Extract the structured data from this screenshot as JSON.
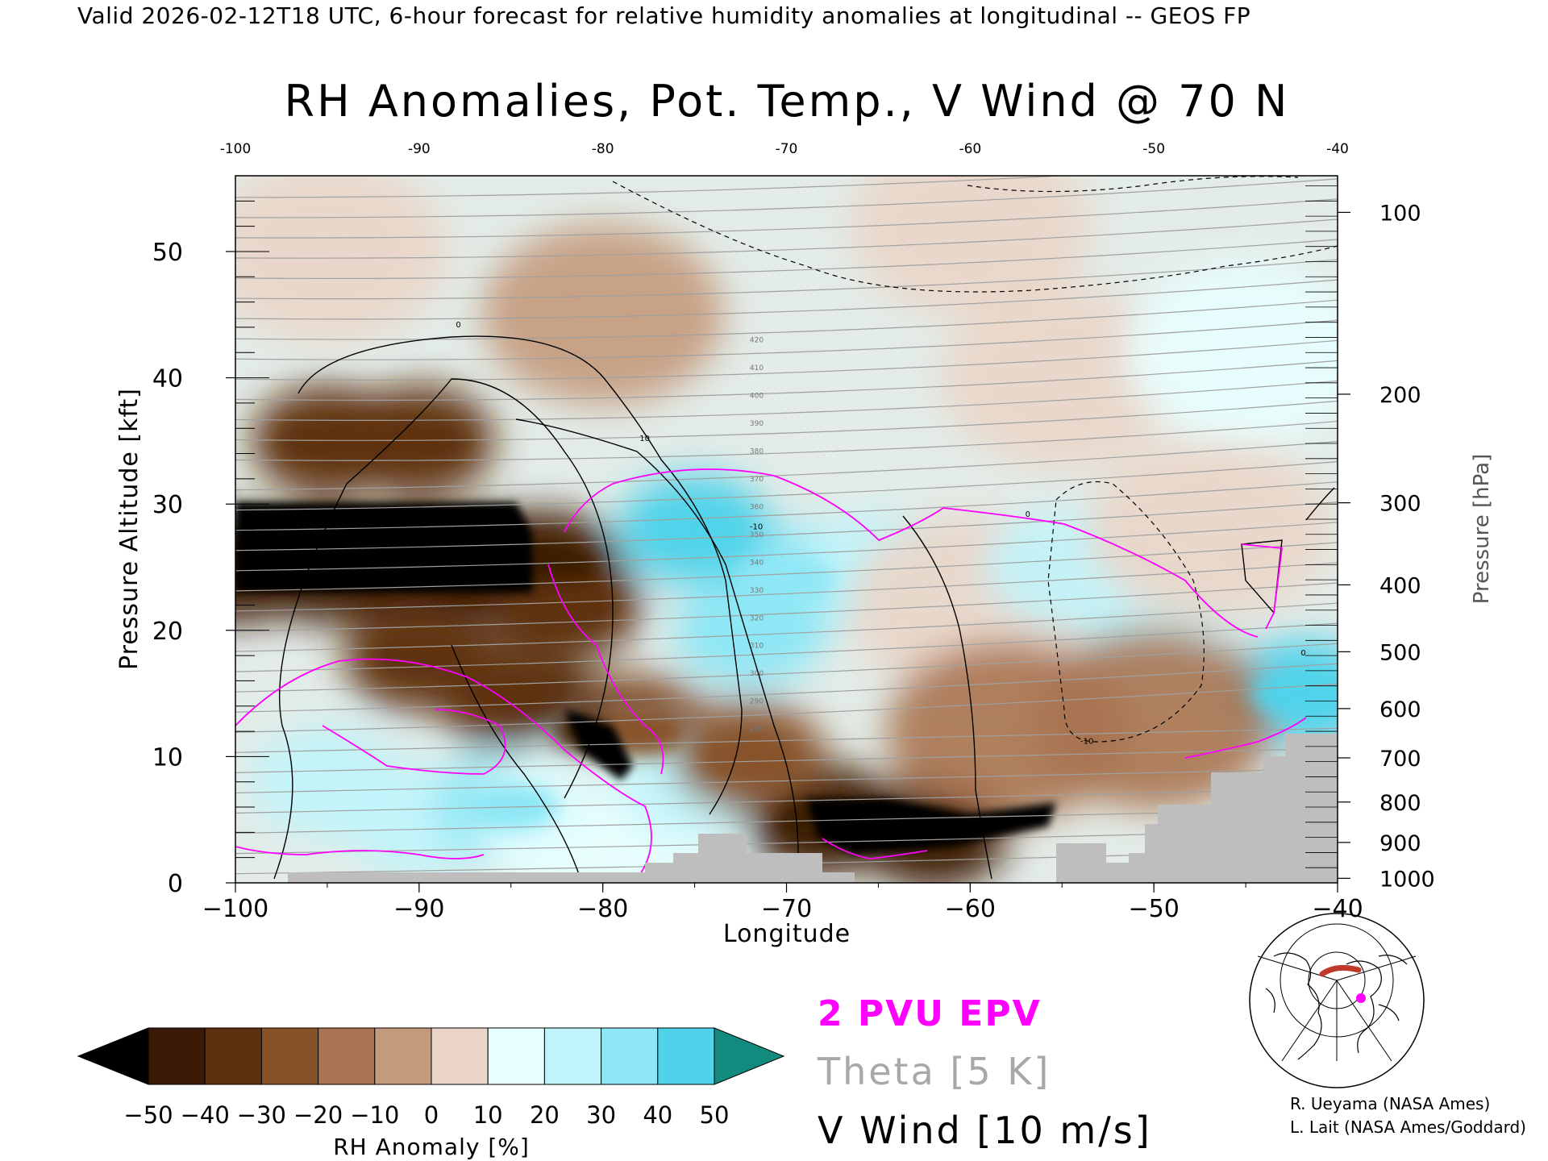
{
  "header": {
    "valid_line": "Valid 2026-02-12T18 UTC, 6-hour forecast for relative humidity anomalies at longitudinal -- GEOS FP"
  },
  "chart_data": {
    "type": "heatmap",
    "title": "RH Anomalies, Pot. Temp., V Wind @ 70 N",
    "xlabel": "Longitude",
    "ylabel": "Pressure Altitude [kft]",
    "y2label": "Pressure [hPa]",
    "xlim": [
      -100,
      -40
    ],
    "ylim": [
      0,
      56
    ],
    "x_ticks": [
      "-100",
      "-90",
      "-80",
      "-70",
      "-60",
      "-50",
      "-40"
    ],
    "x_ticks_bottom": [
      "−100",
      "−90",
      "−80",
      "−70",
      "−60",
      "−50",
      "−40"
    ],
    "y_ticks": [
      "0",
      "10",
      "20",
      "30",
      "40",
      "50"
    ],
    "pressure_levels": [
      "1000",
      "900",
      "800",
      "700",
      "600",
      "500",
      "400",
      "300",
      "200",
      "100"
    ],
    "rh_anomaly_field": [
      {
        "lon": -100,
        "kft": 25,
        "value": -50
      },
      {
        "lon": -95,
        "kft": 25,
        "value": -50
      },
      {
        "lon": -90,
        "kft": 25,
        "value": -50
      },
      {
        "lon": -86,
        "kft": 25,
        "value": -50
      },
      {
        "lon": -83,
        "kft": 25,
        "value": -50
      },
      {
        "lon": -90,
        "kft": 35,
        "value": -35
      },
      {
        "lon": -95,
        "kft": 35,
        "value": -40
      },
      {
        "lon": -90,
        "kft": 18,
        "value": -35
      },
      {
        "lon": -85,
        "kft": 15,
        "value": -38
      },
      {
        "lon": -80,
        "kft": 12,
        "value": -50
      },
      {
        "lon": -78,
        "kft": 12,
        "value": -30
      },
      {
        "lon": -82,
        "kft": 22,
        "value": -35
      },
      {
        "lon": -95,
        "kft": 8,
        "value": 25
      },
      {
        "lon": -90,
        "kft": 5,
        "value": 20
      },
      {
        "lon": -85,
        "kft": 6,
        "value": 35
      },
      {
        "lon": -80,
        "kft": 5,
        "value": 15
      },
      {
        "lon": -75,
        "kft": 8,
        "value": 20
      },
      {
        "lon": -70,
        "kft": 24,
        "value": 30
      },
      {
        "lon": -72,
        "kft": 20,
        "value": 35
      },
      {
        "lon": -75,
        "kft": 28,
        "value": 40
      },
      {
        "lon": -65,
        "kft": 25,
        "value": 25
      },
      {
        "lon": -60,
        "kft": 22,
        "value": 5
      },
      {
        "lon": -55,
        "kft": 25,
        "value": 25
      },
      {
        "lon": -50,
        "kft": 20,
        "value": 25
      },
      {
        "lon": -47,
        "kft": 28,
        "value": 5
      },
      {
        "lon": -42,
        "kft": 15,
        "value": 40
      },
      {
        "lon": -68,
        "kft": 5,
        "value": -50
      },
      {
        "lon": -62,
        "kft": 4,
        "value": -50
      },
      {
        "lon": -72,
        "kft": 10,
        "value": -30
      },
      {
        "lon": -58,
        "kft": 12,
        "value": -15
      },
      {
        "lon": -50,
        "kft": 13,
        "value": -12
      },
      {
        "lon": -55,
        "kft": 40,
        "value": 8
      },
      {
        "lon": -45,
        "kft": 42,
        "value": 15
      },
      {
        "lon": -80,
        "kft": 45,
        "value": -5
      },
      {
        "lon": -95,
        "kft": 50,
        "value": 0
      },
      {
        "lon": -60,
        "kft": 52,
        "value": 0
      }
    ],
    "colorbar": {
      "label": "RH Anomaly [%]",
      "tick_labels": [
        "−50",
        "−40",
        "−30",
        "−20",
        "−10",
        "0",
        "10",
        "20",
        "30",
        "40",
        "50"
      ],
      "colors": [
        "#000000",
        "#3a1a06",
        "#5e3010",
        "#87522a",
        "#a87350",
        "#c49a7c",
        "#ead5c8",
        "#e8ffff",
        "#c0f4fb",
        "#8ee7f5",
        "#4fd3ea",
        "#1ab7d6",
        "#0a8ea8",
        "#138a7e"
      ]
    },
    "theta_labels": [
      "280",
      "290",
      "300",
      "310",
      "320",
      "330",
      "340",
      "350",
      "360",
      "370",
      "380",
      "390",
      "400",
      "410",
      "420"
    ],
    "vwind_labels": [
      "0",
      "10",
      "-10",
      "0",
      "0",
      "10",
      "-10"
    ],
    "legend": {
      "epv": "2 PVU EPV",
      "theta": "Theta [5 K]",
      "vwind": "V Wind [10 m/s]"
    }
  },
  "colors": {
    "epv": "#ff00ff",
    "theta": "#a0a0a0",
    "terrain": "#bebebe"
  },
  "credits": {
    "line1": "R. Ueyama (NASA Ames)",
    "line2": "L. Lait (NASA Ames/Goddard)"
  },
  "inset_map": {
    "icon": "polar-map-icon"
  }
}
